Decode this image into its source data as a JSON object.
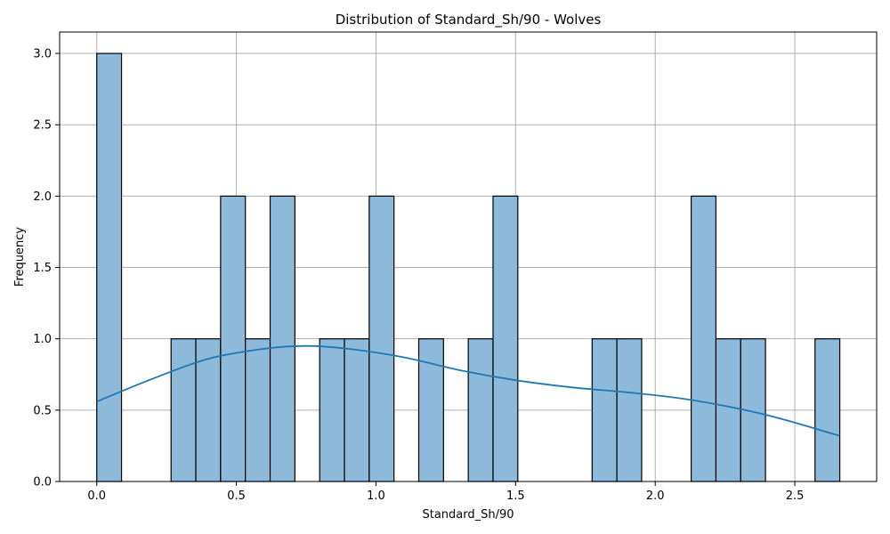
{
  "chart_data": {
    "type": "bar",
    "title": "Distribution of Standard_Sh/90 - Wolves",
    "xlabel": "Standard_Sh/90",
    "ylabel": "Frequency",
    "xlim": [
      -0.133,
      2.793
    ],
    "ylim": [
      0,
      3.15
    ],
    "xticks": [
      "0.0",
      "0.5",
      "1.0",
      "1.5",
      "2.0",
      "2.5"
    ],
    "yticks": [
      "0.0",
      "0.5",
      "1.0",
      "1.5",
      "2.0",
      "2.5",
      "3.0"
    ],
    "grid": true,
    "bins": {
      "start": 0.0,
      "width": 0.0887,
      "counts": [
        3,
        0,
        0,
        1,
        1,
        2,
        1,
        2,
        0,
        1,
        1,
        2,
        0,
        1,
        0,
        1,
        2,
        0,
        0,
        0,
        1,
        1,
        0,
        0,
        2,
        1,
        1,
        0,
        0,
        1
      ]
    },
    "kde": {
      "x": [
        0.0,
        0.2,
        0.4,
        0.6,
        0.75,
        0.9,
        1.1,
        1.3,
        1.5,
        1.7,
        1.9,
        2.1,
        2.3,
        2.45,
        2.66
      ],
      "y": [
        0.56,
        0.72,
        0.86,
        0.93,
        0.95,
        0.93,
        0.87,
        0.78,
        0.71,
        0.66,
        0.625,
        0.58,
        0.51,
        0.44,
        0.32
      ]
    },
    "colors": {
      "bar_fill": "#8db9da",
      "bar_edge": "#000000",
      "kde_line": "#1f77b4",
      "grid": "#b0b0b0"
    }
  }
}
